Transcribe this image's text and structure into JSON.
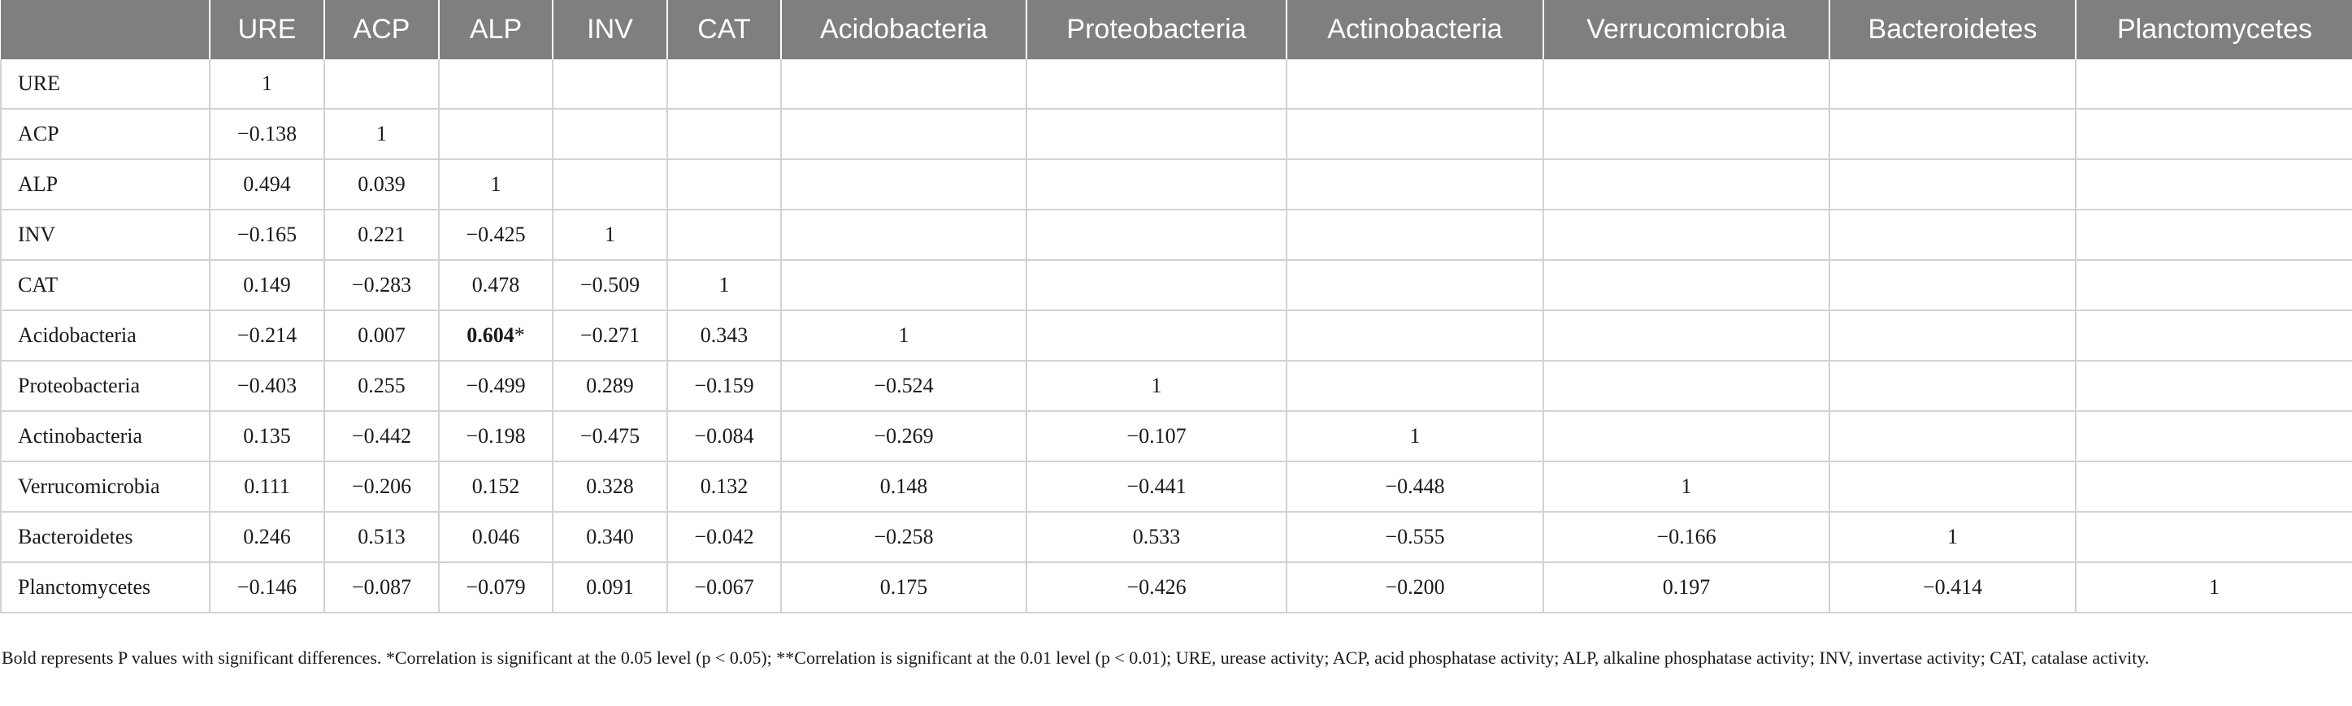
{
  "table": {
    "columns": [
      "",
      "URE",
      "ACP",
      "ALP",
      "INV",
      "CAT",
      "Acidobacteria",
      "Proteobacteria",
      "Actinobacteria",
      "Verrucomicrobia",
      "Bacteroidetes",
      "Planctomycetes"
    ],
    "rows": [
      {
        "label": "URE",
        "cells": [
          "1",
          "",
          "",
          "",
          "",
          "",
          "",
          "",
          "",
          "",
          ""
        ]
      },
      {
        "label": "ACP",
        "cells": [
          "−0.138",
          "1",
          "",
          "",
          "",
          "",
          "",
          "",
          "",
          "",
          ""
        ]
      },
      {
        "label": "ALP",
        "cells": [
          "0.494",
          "0.039",
          "1",
          "",
          "",
          "",
          "",
          "",
          "",
          "",
          ""
        ]
      },
      {
        "label": "INV",
        "cells": [
          "−0.165",
          "0.221",
          "−0.425",
          "1",
          "",
          "",
          "",
          "",
          "",
          "",
          ""
        ]
      },
      {
        "label": "CAT",
        "cells": [
          "0.149",
          "−0.283",
          "0.478",
          "−0.509",
          "1",
          "",
          "",
          "",
          "",
          "",
          ""
        ]
      },
      {
        "label": "Acidobacteria",
        "cells": [
          "−0.214",
          "0.007",
          "0.604",
          "−0.271",
          "0.343",
          "1",
          "",
          "",
          "",
          "",
          ""
        ]
      },
      {
        "label": "Proteobacteria",
        "cells": [
          "−0.403",
          "0.255",
          "−0.499",
          "0.289",
          "−0.159",
          "−0.524",
          "1",
          "",
          "",
          "",
          ""
        ]
      },
      {
        "label": "Actinobacteria",
        "cells": [
          "0.135",
          "−0.442",
          "−0.198",
          "−0.475",
          "−0.084",
          "−0.269",
          "−0.107",
          "1",
          "",
          "",
          ""
        ]
      },
      {
        "label": "Verrucomicrobia",
        "cells": [
          "0.111",
          "−0.206",
          "0.152",
          "0.328",
          "0.132",
          "0.148",
          "−0.441",
          "−0.448",
          "1",
          "",
          ""
        ]
      },
      {
        "label": "Bacteroidetes",
        "cells": [
          "0.246",
          "0.513",
          "0.046",
          "0.340",
          "−0.042",
          "−0.258",
          "0.533",
          "−0.555",
          "−0.166",
          "1",
          ""
        ]
      },
      {
        "label": "Planctomycetes",
        "cells": [
          "−0.146",
          "−0.087",
          "−0.079",
          "0.091",
          "−0.067",
          "0.175",
          "−0.426",
          "−0.200",
          "0.197",
          "−0.414",
          "1"
        ]
      }
    ],
    "highlight": {
      "row": 5,
      "col": 2,
      "marker": "*"
    }
  },
  "footnote": "Bold represents P values with significant differences. *Correlation is significant at the 0.05 level (p < 0.05); **Correlation is significant at the 0.01 level (p < 0.01); URE, urease activity; ACP, acid phosphatase activity; ALP, alkaline phosphatase activity; INV, invertase activity; CAT, catalase activity.",
  "colors": {
    "header_bg": "#7f7f7f",
    "header_text": "#ffffff",
    "grid_line": "#d2d2d2"
  }
}
